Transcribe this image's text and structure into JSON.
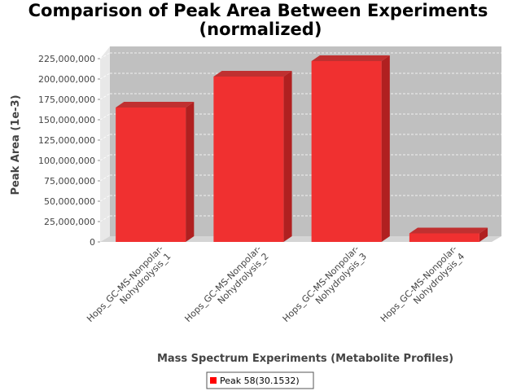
{
  "chart_data": {
    "type": "bar",
    "title": "Comparison of Peak Area Between Experiments",
    "subtitle": "(normalized)",
    "xlabel": "Mass Spectrum Experiments (Metabolite Profiles)",
    "ylabel": "Peak Area (1e-3)",
    "categories": [
      [
        "Hops_GC-MS-Nonpolar-",
        "Nohydrolysis_1"
      ],
      [
        "Hops_GC-MS-Nonpolar-",
        "Nohydrolysis_2"
      ],
      [
        "Hops_GC-MS-Nonpolar-",
        "Nohydrolysis_3"
      ],
      [
        "Hops_GC-MS-Nonpolar-",
        "Nohydrolysis_4"
      ]
    ],
    "series": [
      {
        "name": "Peak 58(30.1532)",
        "color": "#ff0000",
        "values": [
          165000000,
          203000000,
          222000000,
          10500000
        ]
      }
    ],
    "yticks": [
      "0",
      "25,000,000",
      "50,000,000",
      "75,000,000",
      "100,000,000",
      "125,000,000",
      "150,000,000",
      "175,000,000",
      "200,000,000",
      "225,000,000"
    ],
    "ylim": [
      0,
      225000000
    ],
    "grid": true,
    "legend": "bottom"
  }
}
